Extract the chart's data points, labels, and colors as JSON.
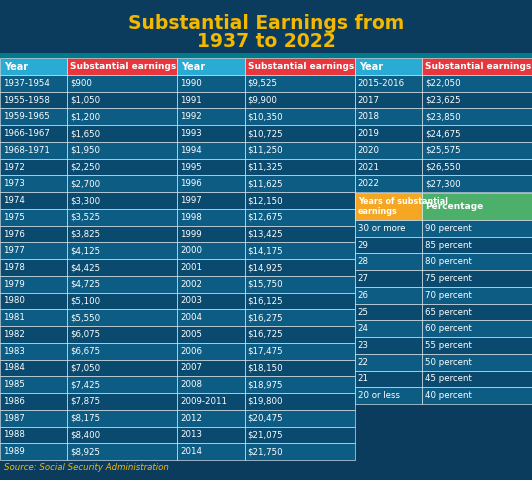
{
  "title_line1": "Substantial Earnings from",
  "title_line2": "1937 to 2022",
  "title_color": "#F5B800",
  "bg_color": "#0B3C5D",
  "teal_color": "#007B8A",
  "col_year_header_bg": "#29ABD4",
  "col_earn_header_bg": "#E8373C",
  "row_bg_odd": "#0D5C84",
  "row_bg_even": "#0A4A6E",
  "text_color": "#FFFFFF",
  "source_text": "Source: Social Security Administration",
  "source_color": "#F5B800",
  "bt_left_header_bg": "#F5A623",
  "bt_right_header_bg": "#4CAF6A",
  "col1_data": [
    [
      "1937-1954",
      "$900"
    ],
    [
      "1955-1958",
      "$1,050"
    ],
    [
      "1959-1965",
      "$1,200"
    ],
    [
      "1966-1967",
      "$1,650"
    ],
    [
      "1968-1971",
      "$1,950"
    ],
    [
      "1972",
      "$2,250"
    ],
    [
      "1973",
      "$2,700"
    ],
    [
      "1974",
      "$3,300"
    ],
    [
      "1975",
      "$3,525"
    ],
    [
      "1976",
      "$3,825"
    ],
    [
      "1977",
      "$4,125"
    ],
    [
      "1978",
      "$4,425"
    ],
    [
      "1979",
      "$4,725"
    ],
    [
      "1980",
      "$5,100"
    ],
    [
      "1981",
      "$5,550"
    ],
    [
      "1982",
      "$6,075"
    ],
    [
      "1983",
      "$6,675"
    ],
    [
      "1984",
      "$7,050"
    ],
    [
      "1985",
      "$7,425"
    ],
    [
      "1986",
      "$7,875"
    ],
    [
      "1987",
      "$8,175"
    ],
    [
      "1988",
      "$8,400"
    ],
    [
      "1989",
      "$8,925"
    ]
  ],
  "col2_data": [
    [
      "1990",
      "$9,525"
    ],
    [
      "1991",
      "$9,900"
    ],
    [
      "1992",
      "$10,350"
    ],
    [
      "1993",
      "$10,725"
    ],
    [
      "1994",
      "$11,250"
    ],
    [
      "1995",
      "$11,325"
    ],
    [
      "1996",
      "$11,625"
    ],
    [
      "1997",
      "$12,150"
    ],
    [
      "1998",
      "$12,675"
    ],
    [
      "1999",
      "$13,425"
    ],
    [
      "2000",
      "$14,175"
    ],
    [
      "2001",
      "$14,925"
    ],
    [
      "2002",
      "$15,750"
    ],
    [
      "2003",
      "$16,125"
    ],
    [
      "2004",
      "$16,275"
    ],
    [
      "2005",
      "$16,725"
    ],
    [
      "2006",
      "$17,475"
    ],
    [
      "2007",
      "$18,150"
    ],
    [
      "2008",
      "$18,975"
    ],
    [
      "2009-2011",
      "$19,800"
    ],
    [
      "2012",
      "$20,475"
    ],
    [
      "2013",
      "$21,075"
    ],
    [
      "2014",
      "$21,750"
    ]
  ],
  "col3_data": [
    [
      "2015-2016",
      "$22,050"
    ],
    [
      "2017",
      "$23,625"
    ],
    [
      "2018",
      "$23,850"
    ],
    [
      "2019",
      "$24,675"
    ],
    [
      "2020",
      "$25,575"
    ],
    [
      "2021",
      "$26,550"
    ],
    [
      "2022",
      "$27,300"
    ]
  ],
  "bottom_left_header": "Years of substantial\nearnings",
  "bottom_right_header": "Percentage",
  "bottom_data": [
    [
      "30 or more",
      "90 percent"
    ],
    [
      "29",
      "85 percent"
    ],
    [
      "28",
      "80 percent"
    ],
    [
      "27",
      "75 percent"
    ],
    [
      "26",
      "70 percent"
    ],
    [
      "25",
      "65 percent"
    ],
    [
      "24",
      "60 percent"
    ],
    [
      "23",
      "55 percent"
    ],
    [
      "22",
      "50 percent"
    ],
    [
      "21",
      "45 percent"
    ],
    [
      "20 or less",
      "40 percent"
    ]
  ]
}
